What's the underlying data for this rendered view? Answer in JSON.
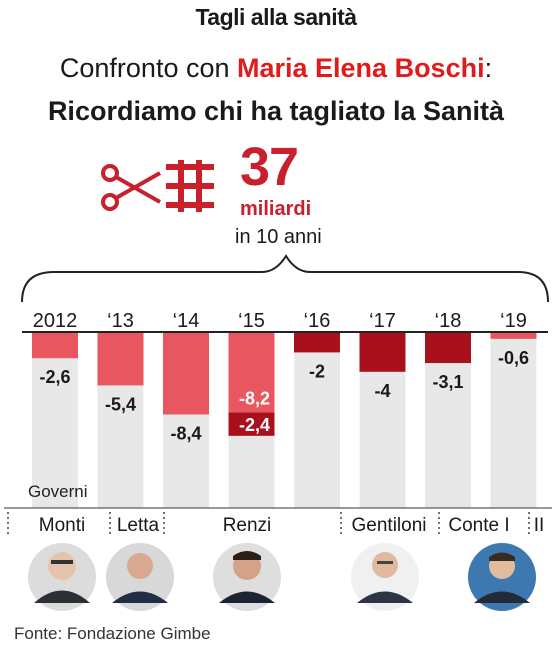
{
  "header": {
    "title": "Tagli alla sanità",
    "subtitle_prefix": "Confronto con ",
    "subtitle_highlight": "Maria Elena Boschi",
    "subtitle_suffix": ":",
    "subtitle_line2": "Ricordiamo chi ha tagliato la Sanità"
  },
  "summary": {
    "amount": "37",
    "unit": "miliardi",
    "period": "in 10 anni"
  },
  "colors": {
    "bar_background": "#e8e8e8",
    "bar_cut": "#e8575f",
    "bar_cut_dark": "#a8111c",
    "brand_red": "#c8202c",
    "highlight_red": "#e01b1b"
  },
  "chart_data": {
    "type": "bar",
    "categories": [
      "2012",
      "‘13",
      "‘14",
      "‘15",
      "‘16",
      "‘17",
      "‘18",
      "‘19"
    ],
    "series": [
      {
        "values": [
          -2.6,
          -5.4,
          -8.4,
          -8.2,
          -2,
          -4,
          -3.1,
          -0.6
        ]
      },
      {
        "values": [
          null,
          null,
          null,
          -2.4,
          null,
          null,
          null,
          null
        ]
      }
    ],
    "data_labels": [
      [
        "-2,6",
        "-5,4",
        "-8,4",
        "-8,2",
        "-2",
        "-4",
        "-3,1",
        "-0,6"
      ],
      [
        "",
        "",
        "",
        "-2,4",
        "",
        "",
        "",
        ""
      ]
    ],
    "ylim": [
      -10.6,
      0
    ],
    "governments_label": "Governi",
    "governments": [
      "Monti",
      "Letta",
      "Renzi",
      "Gentiloni",
      "Conte I",
      "II"
    ],
    "icons": [
      "scissors-icon",
      "red-cross-icon"
    ]
  },
  "footer": {
    "source": "Fonte: Fondazione Gimbe"
  }
}
